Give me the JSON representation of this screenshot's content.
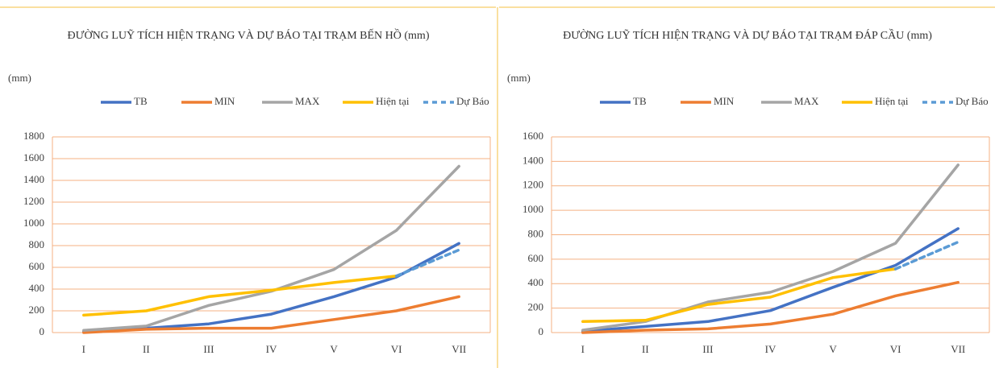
{
  "chart_data": [
    {
      "type": "line",
      "title": "ĐƯỜNG LUỸ TÍCH HIỆN TRẠNG VÀ DỰ BÁO TẠI TRẠM BẾN HỒ (mm)",
      "y_label": "(mm)",
      "categories": [
        "I",
        "II",
        "III",
        "IV",
        "V",
        "VI",
        "VII"
      ],
      "ylim": [
        0,
        1800
      ],
      "yticks": [
        0,
        200,
        400,
        600,
        800,
        1000,
        1200,
        1400,
        1600,
        1800
      ],
      "grid": true,
      "series": [
        {
          "name": "TB",
          "color": "#4472c4",
          "values": [
            10,
            40,
            80,
            170,
            330,
            510,
            820
          ]
        },
        {
          "name": "MIN",
          "color": "#ed7d31",
          "values": [
            0,
            30,
            40,
            40,
            120,
            200,
            330
          ]
        },
        {
          "name": "MAX",
          "color": "#a5a5a5",
          "values": [
            20,
            60,
            250,
            380,
            580,
            940,
            1530
          ]
        },
        {
          "name": "Hiện tại",
          "color": "#ffc000",
          "values": [
            160,
            200,
            330,
            390,
            460,
            520,
            null
          ]
        },
        {
          "name": "Dự Báo",
          "color": "#5b9bd5",
          "dashed": true,
          "values": [
            null,
            null,
            null,
            null,
            null,
            520,
            760
          ]
        }
      ]
    },
    {
      "type": "line",
      "title": "ĐƯỜNG LUỸ TÍCH HIỆN TRẠNG VÀ DỰ BÁO TẠI TRẠM ĐÁP CẦU (mm)",
      "y_label": "(mm)",
      "categories": [
        "I",
        "II",
        "III",
        "IV",
        "V",
        "VI",
        "VII"
      ],
      "ylim": [
        0,
        1600
      ],
      "yticks": [
        0,
        200,
        400,
        600,
        800,
        1000,
        1200,
        1400,
        1600
      ],
      "grid": true,
      "series": [
        {
          "name": "TB",
          "color": "#4472c4",
          "values": [
            10,
            50,
            90,
            180,
            370,
            550,
            850
          ]
        },
        {
          "name": "MIN",
          "color": "#ed7d31",
          "values": [
            0,
            20,
            30,
            70,
            150,
            300,
            410
          ]
        },
        {
          "name": "MAX",
          "color": "#a5a5a5",
          "values": [
            20,
            90,
            250,
            330,
            500,
            730,
            1370
          ]
        },
        {
          "name": "Hiện tại",
          "color": "#ffc000",
          "values": [
            90,
            100,
            230,
            290,
            450,
            520,
            null
          ]
        },
        {
          "name": "Dự Báo",
          "color": "#5b9bd5",
          "dashed": true,
          "values": [
            null,
            null,
            null,
            null,
            null,
            520,
            740
          ]
        }
      ]
    }
  ]
}
